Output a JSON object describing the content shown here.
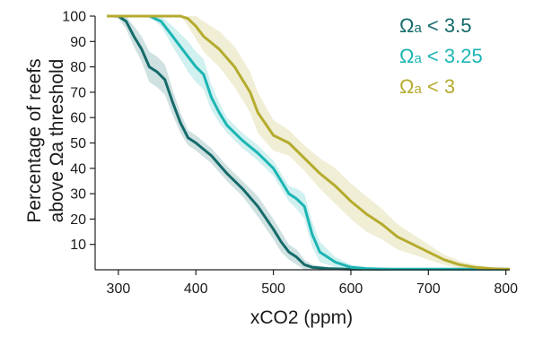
{
  "chart_data": {
    "type": "line",
    "title": "",
    "xlabel": "xCO2 (ppm)",
    "ylabel_line1": "Percentage of reefs",
    "ylabel_line2": "above Ωa threshold",
    "xlim": [
      270,
      805
    ],
    "ylim": [
      0,
      100
    ],
    "xticks": [
      300,
      400,
      500,
      600,
      700,
      800
    ],
    "yticks": [
      10,
      20,
      30,
      40,
      50,
      60,
      70,
      80,
      90,
      100
    ],
    "grid": false,
    "legend_position": "top-right",
    "series": [
      {
        "omega": "Ω",
        "sub": "a",
        "rest": " < 3.5",
        "color": "#156b6b",
        "x": [
          285,
          300,
          310,
          320,
          330,
          340,
          350,
          360,
          370,
          380,
          390,
          400,
          420,
          440,
          460,
          480,
          500,
          510,
          520,
          530,
          540,
          550,
          570,
          600
        ],
        "y": [
          100,
          100,
          98,
          92,
          87,
          80,
          78,
          75,
          66,
          58,
          52,
          50,
          45,
          38,
          32,
          25,
          16,
          11,
          7,
          5,
          2,
          1,
          0.5,
          0.2
        ],
        "band": [
          0,
          1,
          3,
          4,
          5,
          6,
          6,
          6,
          5,
          4,
          3,
          3,
          3,
          3,
          3,
          4,
          4,
          4,
          3,
          3,
          2,
          1,
          0.5,
          0.2
        ]
      },
      {
        "omega": "Ω",
        "sub": "a",
        "rest": " < 3.25",
        "color": "#1bb5b3",
        "x": [
          285,
          340,
          355,
          370,
          380,
          390,
          400,
          410,
          420,
          430,
          440,
          450,
          460,
          480,
          500,
          510,
          520,
          530,
          540,
          550,
          560,
          580,
          600,
          620,
          650
        ],
        "y": [
          100,
          100,
          98,
          92,
          88,
          84,
          80,
          77,
          68,
          62,
          57,
          54,
          51,
          46,
          40,
          35,
          30,
          28,
          25,
          14,
          7,
          3,
          1,
          0.5,
          0.2
        ],
        "band": [
          0,
          0,
          2,
          4,
          5,
          6,
          6,
          6,
          5,
          4,
          3,
          3,
          3,
          3,
          3,
          3,
          3,
          4,
          5,
          5,
          4,
          2,
          1,
          0.5,
          0.2
        ]
      },
      {
        "omega": "Ω",
        "sub": "a",
        "rest": " < 3",
        "color": "#b5ab2e",
        "x": [
          285,
          380,
          390,
          400,
          410,
          430,
          450,
          470,
          480,
          500,
          520,
          540,
          560,
          580,
          600,
          620,
          640,
          660,
          680,
          700,
          720,
          740,
          760,
          780,
          800
        ],
        "y": [
          100,
          100,
          99,
          96,
          92,
          87,
          80,
          70,
          62,
          53,
          50,
          44,
          38,
          33,
          27,
          22,
          18,
          13,
          10,
          7,
          4,
          2,
          1,
          0.5,
          0.2
        ],
        "band": [
          0,
          0,
          3,
          5,
          6,
          7,
          8,
          8,
          8,
          6,
          5,
          5,
          6,
          7,
          7,
          7,
          6,
          5,
          4,
          3,
          2,
          1.5,
          1,
          0.5,
          0.2
        ]
      }
    ]
  }
}
